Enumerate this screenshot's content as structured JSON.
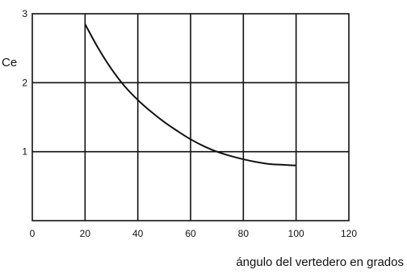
{
  "chart_data": {
    "type": "line",
    "title": "",
    "xlabel": "ángulo del vertedero en grados",
    "ylabel": "Ce",
    "xlim": [
      0,
      120
    ],
    "ylim": [
      0,
      3
    ],
    "x_ticks": [
      "0",
      "20",
      "40",
      "60",
      "80",
      "100",
      "120"
    ],
    "y_ticks": [
      "1",
      "2",
      "3"
    ],
    "grid": true,
    "series": [
      {
        "x": [
          20,
          25,
          30,
          35,
          40,
          45,
          50,
          55,
          60,
          65,
          70,
          75,
          80,
          85,
          90,
          95,
          100
        ],
        "y": [
          2.85,
          2.5,
          2.2,
          1.95,
          1.75,
          1.58,
          1.43,
          1.3,
          1.18,
          1.08,
          1.0,
          0.94,
          0.89,
          0.85,
          0.82,
          0.81,
          0.8
        ]
      }
    ]
  },
  "colors": {
    "curve": "#111111",
    "grid": "#111111",
    "frame": "#111111"
  }
}
